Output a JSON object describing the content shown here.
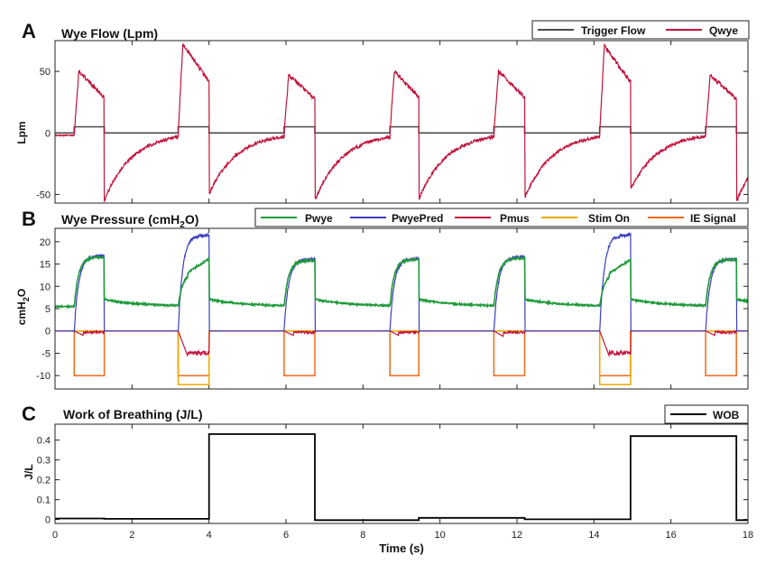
{
  "chart_data": [
    {
      "id": "A",
      "letter": "A",
      "type": "line",
      "title": "Wye Flow (Lpm)",
      "ylabel": "Lpm",
      "xlim": [
        0,
        18
      ],
      "ylim": [
        -57,
        75
      ],
      "yticks": [
        -50,
        0,
        50
      ],
      "xticks": [
        0,
        2,
        4,
        6,
        8,
        10,
        12,
        14,
        16,
        18
      ],
      "legend_position": "top-right",
      "breaths": [
        {
          "ins_start": 0.5,
          "ins_end": 1.28,
          "peak": 50,
          "trough": -55
        },
        {
          "ins_start": 3.2,
          "ins_end": 4.0,
          "peak": 72,
          "trough": -50
        },
        {
          "ins_start": 5.95,
          "ins_end": 6.75,
          "peak": 47,
          "trough": -55
        },
        {
          "ins_start": 8.7,
          "ins_end": 9.45,
          "peak": 50,
          "trough": -54
        },
        {
          "ins_start": 11.4,
          "ins_end": 12.2,
          "peak": 50,
          "trough": -53
        },
        {
          "ins_start": 14.15,
          "ins_end": 14.95,
          "peak": 71,
          "trough": -46
        },
        {
          "ins_start": 16.9,
          "ins_end": 17.7,
          "peak": 47,
          "trough": -56
        }
      ],
      "series": [
        {
          "name": "Trigger Flow",
          "color": "#4a4a4a",
          "on_value": 5,
          "off_value": 0
        },
        {
          "name": "Qwye",
          "color": "#c0143c"
        }
      ]
    },
    {
      "id": "B",
      "letter": "B",
      "type": "line",
      "title": "Wye Pressure (cmH",
      "title_sub": "2",
      "title_end": "O)",
      "ylabel": "cmH",
      "ylabel_sub": "2",
      "ylabel_end": "O",
      "xlim": [
        0,
        18
      ],
      "ylim": [
        -13,
        23
      ],
      "yticks": [
        -10,
        -5,
        0,
        5,
        10,
        15,
        20
      ],
      "xticks": [
        0,
        2,
        4,
        6,
        8,
        10,
        12,
        14,
        16,
        18
      ],
      "legend_position": "top",
      "baseline_pressure": 5.5,
      "breaths": [
        {
          "ins_start": 0.5,
          "ins_end": 1.28,
          "pwye_peak": 16.5,
          "pred_peak": 16.8,
          "pmus_min": -1,
          "stim": false
        },
        {
          "ins_start": 3.2,
          "ins_end": 4.0,
          "pwye_peak": 16.2,
          "pred_peak": 21.5,
          "pmus_min": -5.5,
          "stim": true
        },
        {
          "ins_start": 5.95,
          "ins_end": 6.75,
          "pwye_peak": 15.8,
          "pred_peak": 16.0,
          "pmus_min": -1,
          "stim": false
        },
        {
          "ins_start": 8.7,
          "ins_end": 9.45,
          "pwye_peak": 16.0,
          "pred_peak": 16.2,
          "pmus_min": -1,
          "stim": false
        },
        {
          "ins_start": 11.4,
          "ins_end": 12.2,
          "pwye_peak": 16.3,
          "pred_peak": 16.6,
          "pmus_min": -1.2,
          "stim": false
        },
        {
          "ins_start": 14.15,
          "ins_end": 14.95,
          "pwye_peak": 16.0,
          "pred_peak": 21.5,
          "pmus_min": -5.5,
          "stim": true
        },
        {
          "ins_start": 16.9,
          "ins_end": 17.7,
          "pwye_peak": 16.0,
          "pred_peak": 16.1,
          "pmus_min": -1,
          "stim": false
        }
      ],
      "ie_signal_insp_value": -10,
      "stim_on_value": -12,
      "series": [
        {
          "name": "Pwye",
          "color": "#1f9a3a"
        },
        {
          "name": "PwyePred",
          "color": "#3a3fc0"
        },
        {
          "name": "Pmus",
          "color": "#c0143c"
        },
        {
          "name": "Stim On",
          "color": "#f0a800"
        },
        {
          "name": "IE Signal",
          "color": "#f06a1a"
        }
      ]
    },
    {
      "id": "C",
      "letter": "C",
      "type": "line",
      "title": "Work of Breathing (J/L)",
      "ylabel": "J/L",
      "xlabel": "Time (s)",
      "xlim": [
        0,
        18
      ],
      "ylim": [
        -0.02,
        0.48
      ],
      "yticks": [
        0,
        0.1,
        0.2,
        0.3,
        0.4
      ],
      "ytick_labels": [
        "0",
        "0.1",
        "0.2",
        "0.3",
        "0.4"
      ],
      "xticks": [
        0,
        2,
        4,
        6,
        8,
        10,
        12,
        14,
        16,
        18
      ],
      "legend_position": "top-right",
      "series": [
        {
          "name": "WOB",
          "color": "#000000",
          "step_x": [
            0,
            1.28,
            4.0,
            6.75,
            9.45,
            12.2,
            14.95,
            17.7,
            18
          ],
          "step_y": [
            0.005,
            0.003,
            0.43,
            -0.003,
            0.008,
            0.001,
            0.42,
            -0.003,
            -0.003
          ]
        }
      ]
    }
  ]
}
